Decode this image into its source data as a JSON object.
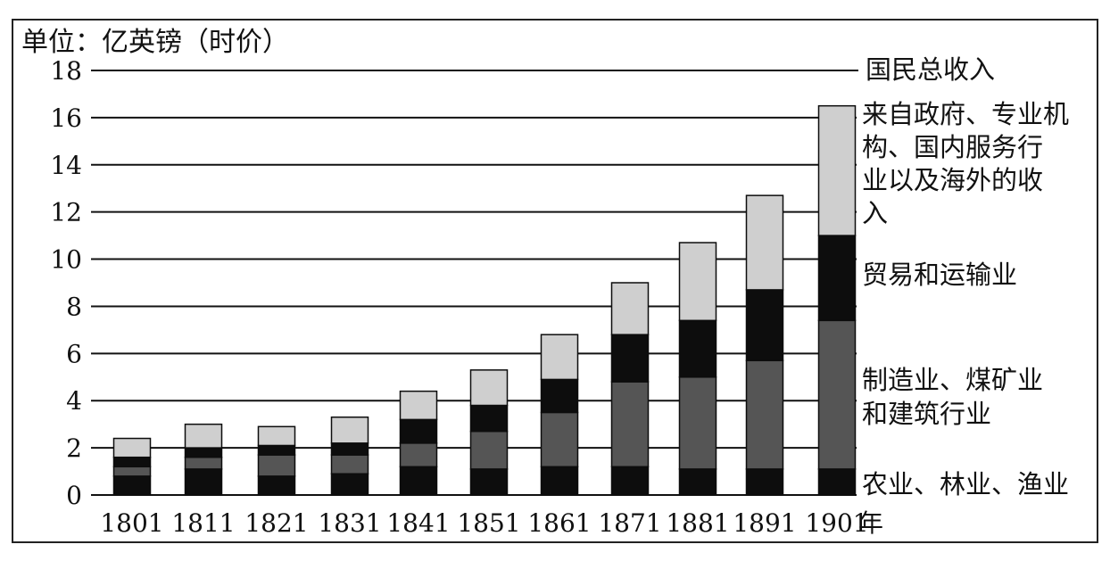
{
  "chart_data": {
    "type": "bar",
    "stacked": true,
    "unit_label": "单位：亿英镑（时价）",
    "x_suffix": "年",
    "categories": [
      "1801",
      "1811",
      "1821",
      "1831",
      "1841",
      "1851",
      "1861",
      "1871",
      "1881",
      "1891",
      "1901"
    ],
    "ylim": [
      0,
      18
    ],
    "yticks": [
      "0",
      "2",
      "4",
      "6",
      "8",
      "10",
      "12",
      "14",
      "16",
      "18"
    ],
    "grid": true,
    "series": [
      {
        "name": "农业、林业、渔业",
        "color": "#0d0d0d",
        "values": [
          0.8,
          1.1,
          0.8,
          0.9,
          1.2,
          1.1,
          1.2,
          1.2,
          1.1,
          1.1,
          1.1
        ]
      },
      {
        "name": "制造业、煤矿业和建筑行业",
        "color": "#555555",
        "values": [
          0.4,
          0.5,
          0.9,
          0.8,
          1.0,
          1.6,
          2.3,
          3.6,
          3.9,
          4.6,
          6.3
        ]
      },
      {
        "name": "贸易和运输业",
        "color": "#0d0d0d",
        "values": [
          0.4,
          0.4,
          0.4,
          0.5,
          1.0,
          1.1,
          1.4,
          2.0,
          2.4,
          3.0,
          3.6
        ]
      },
      {
        "name": "来自政府、专业机构、国内服务行业以及海外的收入",
        "color": "#cfcfcf",
        "values": [
          0.8,
          1.0,
          0.8,
          1.1,
          1.2,
          1.5,
          1.9,
          2.2,
          3.3,
          4.0,
          5.5
        ]
      }
    ],
    "total_label": "国民总收入",
    "legend_placement": "right"
  }
}
